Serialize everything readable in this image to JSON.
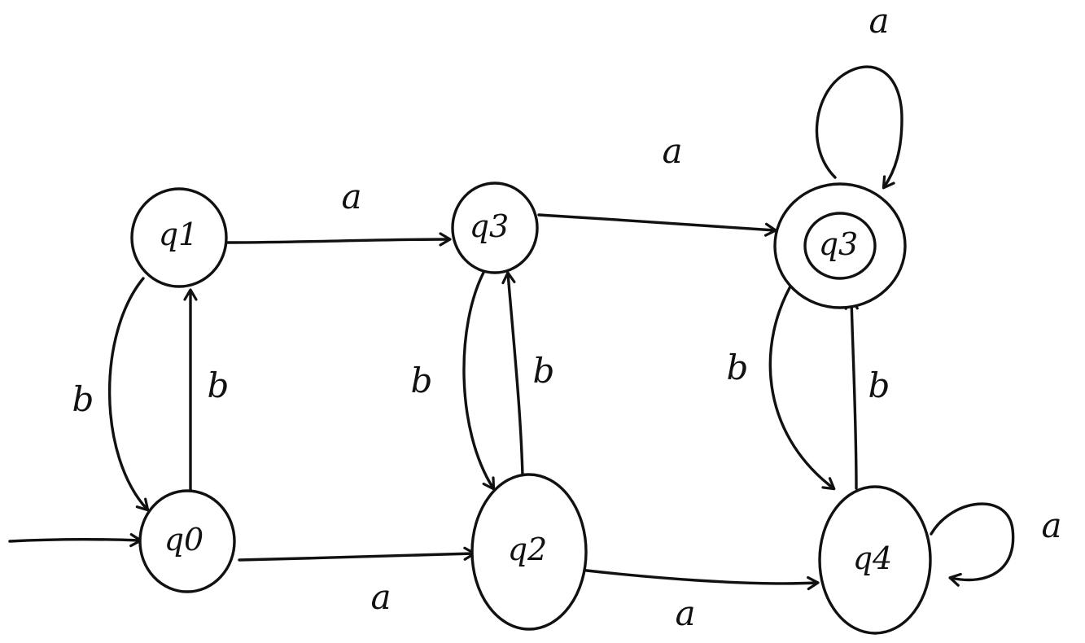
{
  "style": {
    "ink": "#111111",
    "background": "#ffffff"
  },
  "diagram": {
    "start_state": "q0",
    "states": [
      {
        "id": "q0",
        "label": "q0",
        "accepting": false
      },
      {
        "id": "q1",
        "label": "q1",
        "accepting": false
      },
      {
        "id": "q2",
        "label": "q2",
        "accepting": false
      },
      {
        "id": "q3a",
        "label": "q3",
        "accepting": false
      },
      {
        "id": "q3b",
        "label": "q3",
        "accepting": true
      },
      {
        "id": "q4",
        "label": "q4",
        "accepting": false
      }
    ],
    "transitions": [
      {
        "id": "q1-q3a",
        "from": "q1",
        "to": "q3a",
        "label": "a"
      },
      {
        "id": "q3a-q3b",
        "from": "q3a",
        "to": "q3b",
        "label": "a"
      },
      {
        "id": "q3b-self",
        "from": "q3b",
        "to": "q3b",
        "label": "a"
      },
      {
        "id": "q0-q2",
        "from": "q0",
        "to": "q2",
        "label": "a"
      },
      {
        "id": "q2-q4",
        "from": "q2",
        "to": "q4",
        "label": "a"
      },
      {
        "id": "q4-self",
        "from": "q4",
        "to": "q4",
        "label": "a"
      },
      {
        "id": "q1-q0",
        "from": "q1",
        "to": "q0",
        "label": "b"
      },
      {
        "id": "q0-q1",
        "from": "q0",
        "to": "q1",
        "label": "b"
      },
      {
        "id": "q3a-q2",
        "from": "q3a",
        "to": "q2",
        "label": "b"
      },
      {
        "id": "q2-q3a",
        "from": "q2",
        "to": "q3a",
        "label": "b"
      },
      {
        "id": "q3b-q4",
        "from": "q3b",
        "to": "q4",
        "label": "b"
      },
      {
        "id": "q4-q3b",
        "from": "q4",
        "to": "q3b",
        "label": "b"
      }
    ]
  }
}
